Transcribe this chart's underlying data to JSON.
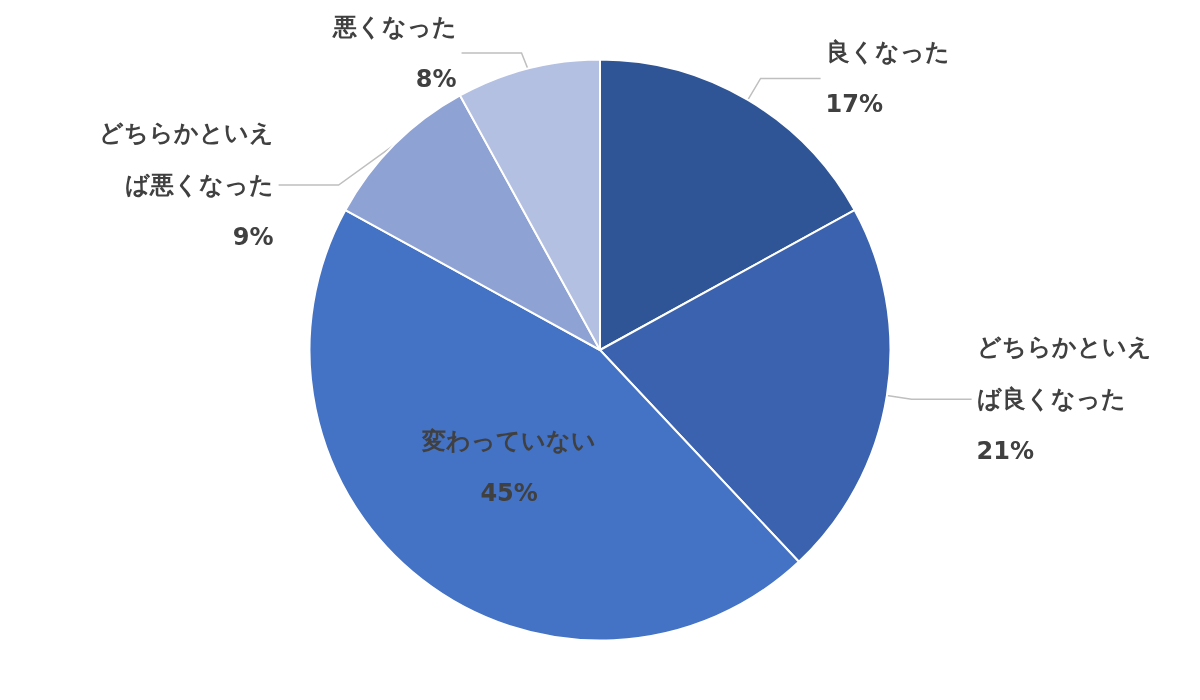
{
  "chart_data": {
    "type": "pie",
    "categories": [
      "良くなった",
      "どちらかといえば良くなった",
      "変わっていない",
      "どちらかといえば悪くなった",
      "悪くなった"
    ],
    "values": [
      17,
      21,
      45,
      9,
      8
    ],
    "value_labels": [
      "17%",
      "21%",
      "45%",
      "9%",
      "8%"
    ],
    "colors": [
      "#2f5597",
      "#3a62ae",
      "#4472c4",
      "#8fa2d4",
      "#b4c0e2"
    ],
    "legend": false
  }
}
